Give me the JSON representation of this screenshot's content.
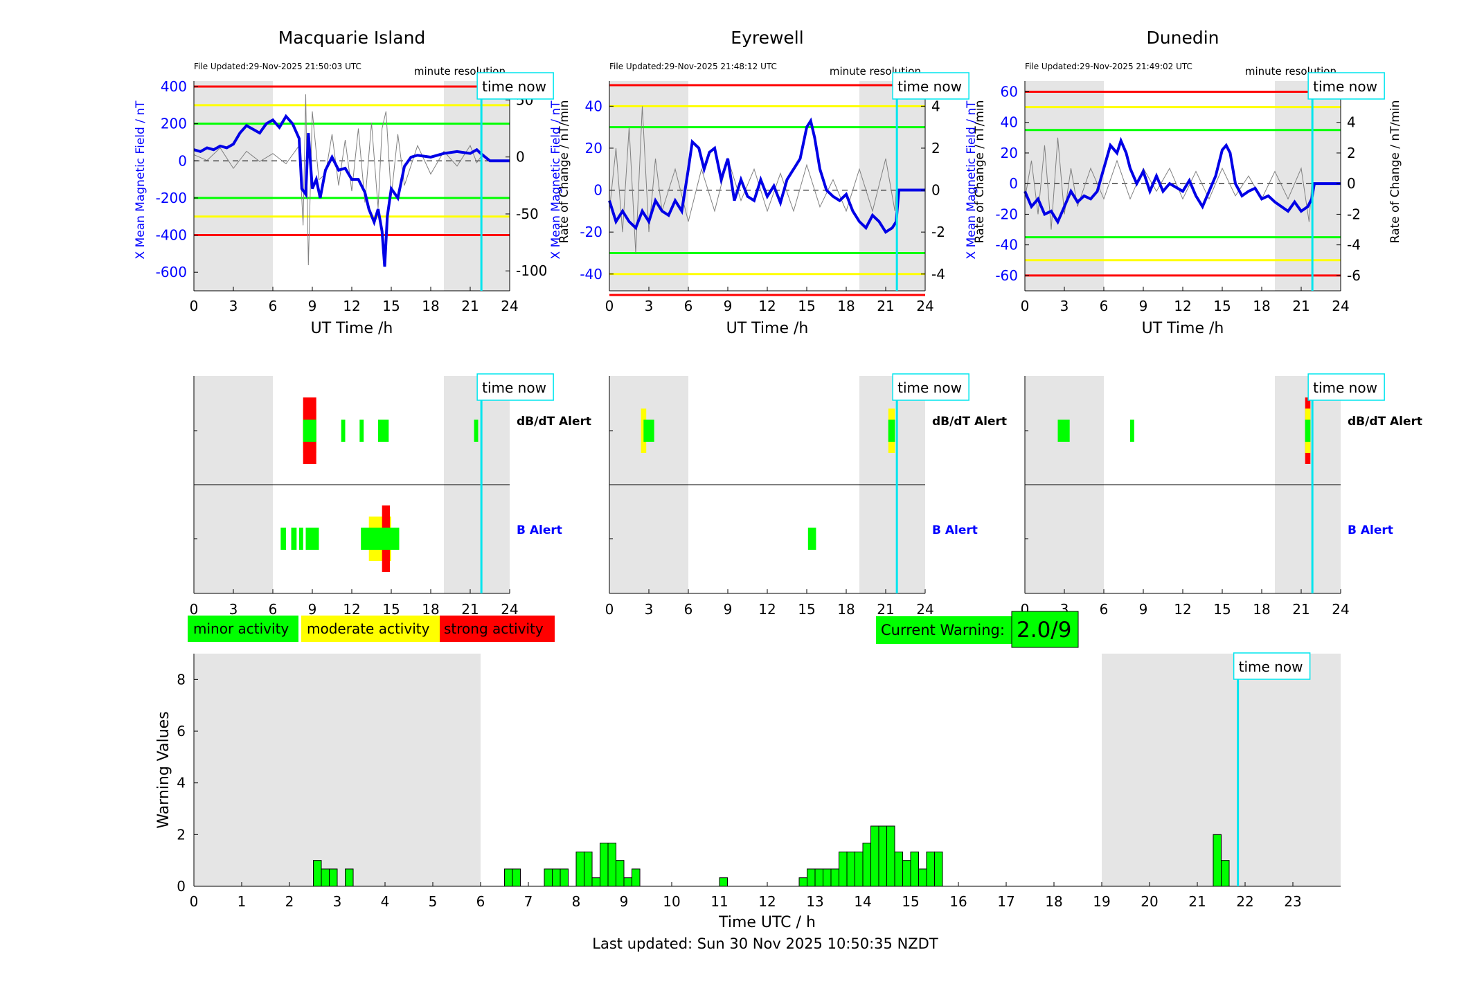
{
  "colors": {
    "shade": "#e5e5e5",
    "field_line": "#0000e6",
    "rate_line": "#808080",
    "red": "#ff0000",
    "yellow": "#ffff00",
    "green": "#00ff00",
    "cyan": "#00e5ee",
    "blue_text": "#0000ff"
  },
  "common": {
    "x_ticks": [
      0,
      3,
      6,
      9,
      12,
      15,
      18,
      21,
      24
    ],
    "xlabel": "UT Time /h",
    "minute_resolution": "minute resolution",
    "time_now_label": "time now",
    "time_now_hour": 21.85,
    "night_shading": [
      [
        0,
        6
      ],
      [
        19,
        24
      ]
    ],
    "dbdt_alert_label": "dB/dT Alert",
    "b_alert_label": "B Alert"
  },
  "stations": [
    {
      "name": "Macquarie Island",
      "file_updated": "File Updated:29-Nov-2025 21:50:03 UTC",
      "ylabel_left": "X Mean Magnetic Field / nT",
      "ylabel_right": "Rate of Change / nT/min",
      "ylim_left": [
        -700,
        430
      ],
      "left_ticks": [
        400,
        200,
        0,
        -200,
        -400,
        -600
      ],
      "ylim_right": [
        -117.5,
        66.7
      ],
      "right_ticks": [
        50,
        0,
        -50,
        -100
      ],
      "thresholds": {
        "red": [
          400,
          -400
        ],
        "yellow": [
          300,
          -300
        ],
        "green": [
          200,
          -200
        ]
      },
      "field_series": [
        [
          0,
          60
        ],
        [
          0.5,
          50
        ],
        [
          1,
          70
        ],
        [
          1.5,
          60
        ],
        [
          2,
          80
        ],
        [
          2.5,
          70
        ],
        [
          3,
          90
        ],
        [
          3.5,
          150
        ],
        [
          4,
          190
        ],
        [
          4.5,
          170
        ],
        [
          5,
          150
        ],
        [
          5.5,
          200
        ],
        [
          6,
          220
        ],
        [
          6.5,
          180
        ],
        [
          7,
          240
        ],
        [
          7.5,
          200
        ],
        [
          8,
          120
        ],
        [
          8.2,
          -150
        ],
        [
          8.5,
          -180
        ],
        [
          8.7,
          150
        ],
        [
          9,
          -150
        ],
        [
          9.3,
          -100
        ],
        [
          9.6,
          -200
        ],
        [
          10,
          -50
        ],
        [
          10.5,
          20
        ],
        [
          11,
          -50
        ],
        [
          11.5,
          -40
        ],
        [
          12,
          -100
        ],
        [
          12.5,
          -100
        ],
        [
          13,
          -170
        ],
        [
          13.3,
          -260
        ],
        [
          13.7,
          -330
        ],
        [
          14,
          -260
        ],
        [
          14.3,
          -380
        ],
        [
          14.5,
          -570
        ],
        [
          14.7,
          -300
        ],
        [
          15,
          -150
        ],
        [
          15.5,
          -200
        ],
        [
          16,
          -30
        ],
        [
          16.5,
          20
        ],
        [
          17,
          30
        ],
        [
          18,
          20
        ],
        [
          19,
          40
        ],
        [
          20,
          50
        ],
        [
          21,
          40
        ],
        [
          21.5,
          60
        ],
        [
          21.8,
          40
        ],
        [
          22.5,
          0
        ],
        [
          24,
          0
        ]
      ],
      "rate_series": [
        [
          0,
          2
        ],
        [
          1,
          -3
        ],
        [
          2,
          8
        ],
        [
          3,
          -10
        ],
        [
          4,
          5
        ],
        [
          5,
          -4
        ],
        [
          6,
          3
        ],
        [
          7,
          -6
        ],
        [
          8,
          10
        ],
        [
          8.3,
          -60
        ],
        [
          8.5,
          55
        ],
        [
          8.7,
          -95
        ],
        [
          9,
          40
        ],
        [
          9.5,
          -20
        ],
        [
          10,
          -15
        ],
        [
          10.5,
          20
        ],
        [
          11,
          -25
        ],
        [
          11.5,
          15
        ],
        [
          12,
          -30
        ],
        [
          12.5,
          25
        ],
        [
          13,
          -40
        ],
        [
          13.5,
          30
        ],
        [
          14,
          -45
        ],
        [
          14.3,
          25
        ],
        [
          14.6,
          40
        ],
        [
          15,
          -35
        ],
        [
          15.5,
          20
        ],
        [
          16,
          -25
        ],
        [
          17,
          10
        ],
        [
          18,
          -15
        ],
        [
          19,
          5
        ],
        [
          20,
          -8
        ],
        [
          21,
          10
        ],
        [
          21.5,
          -5
        ],
        [
          21.8,
          0
        ]
      ],
      "dbdt_blocks": [
        [
          8.3,
          9.3,
          "green"
        ],
        [
          8.3,
          9.3,
          "yellow"
        ],
        [
          8.3,
          9.3,
          "red"
        ],
        [
          11.2,
          11.5,
          "green"
        ],
        [
          12.6,
          12.9,
          "green"
        ],
        [
          14,
          14.8,
          "green"
        ],
        [
          21.3,
          21.6,
          "green"
        ]
      ],
      "b_blocks": [
        [
          6.6,
          7.0,
          "green"
        ],
        [
          7.4,
          7.8,
          "green"
        ],
        [
          8,
          8.3,
          "green"
        ],
        [
          8.5,
          9.5,
          "green"
        ],
        [
          12.7,
          15.6,
          "green"
        ],
        [
          13.3,
          15.0,
          "yellow"
        ],
        [
          14.3,
          14.9,
          "red"
        ]
      ]
    },
    {
      "name": "Eyrewell",
      "file_updated": "File Updated:29-Nov-2025 21:48:12 UTC",
      "ylabel_left": "X Mean Magnetic Field / nT",
      "ylabel_right": "Rate of Change / nT/min",
      "ylim_left": [
        -48,
        52
      ],
      "left_ticks": [
        40,
        20,
        0,
        -20,
        -40
      ],
      "ylim_right": [
        -4.8,
        5.2
      ],
      "right_ticks": [
        4,
        2,
        0,
        -2,
        -4
      ],
      "thresholds": {
        "red": [
          50,
          -50
        ],
        "yellow": [
          40,
          -40
        ],
        "green": [
          30,
          -30
        ]
      },
      "field_series": [
        [
          0,
          -5
        ],
        [
          0.5,
          -15
        ],
        [
          1,
          -10
        ],
        [
          1.5,
          -15
        ],
        [
          2,
          -18
        ],
        [
          2.5,
          -10
        ],
        [
          3,
          -15
        ],
        [
          3.5,
          -5
        ],
        [
          4,
          -10
        ],
        [
          4.5,
          -12
        ],
        [
          5,
          -5
        ],
        [
          5.5,
          -10
        ],
        [
          6,
          10
        ],
        [
          6.3,
          23
        ],
        [
          6.8,
          20
        ],
        [
          7.2,
          10
        ],
        [
          7.6,
          18
        ],
        [
          8,
          20
        ],
        [
          8.5,
          5
        ],
        [
          9,
          15
        ],
        [
          9.5,
          -5
        ],
        [
          10,
          5
        ],
        [
          10.5,
          -3
        ],
        [
          11,
          -5
        ],
        [
          11.5,
          5
        ],
        [
          12,
          -3
        ],
        [
          12.5,
          2
        ],
        [
          13,
          -6
        ],
        [
          13.5,
          5
        ],
        [
          14,
          10
        ],
        [
          14.5,
          15
        ],
        [
          15,
          30
        ],
        [
          15.3,
          33
        ],
        [
          15.6,
          25
        ],
        [
          16,
          10
        ],
        [
          16.5,
          0
        ],
        [
          17,
          -3
        ],
        [
          17.5,
          -5
        ],
        [
          18,
          -2
        ],
        [
          18.5,
          -10
        ],
        [
          19,
          -15
        ],
        [
          19.5,
          -18
        ],
        [
          20,
          -12
        ],
        [
          20.5,
          -15
        ],
        [
          21,
          -20
        ],
        [
          21.5,
          -18
        ],
        [
          21.8,
          -15
        ],
        [
          22,
          0
        ],
        [
          24,
          0
        ]
      ],
      "rate_series": [
        [
          0,
          -1
        ],
        [
          0.5,
          2
        ],
        [
          1,
          -2
        ],
        [
          1.5,
          3
        ],
        [
          2,
          -3
        ],
        [
          2.5,
          4
        ],
        [
          3,
          -2
        ],
        [
          3.5,
          1.5
        ],
        [
          4,
          -1
        ],
        [
          5,
          1
        ],
        [
          6,
          -1.5
        ],
        [
          7,
          1
        ],
        [
          8,
          -1
        ],
        [
          9,
          1.5
        ],
        [
          10,
          -0.5
        ],
        [
          11,
          1
        ],
        [
          12,
          -1
        ],
        [
          13,
          0.8
        ],
        [
          14,
          -1
        ],
        [
          15,
          1.2
        ],
        [
          16,
          -0.8
        ],
        [
          17,
          0.5
        ],
        [
          18,
          -1
        ],
        [
          19,
          1
        ],
        [
          20,
          -1
        ],
        [
          21,
          1.5
        ],
        [
          21.7,
          -1
        ],
        [
          21.8,
          0
        ]
      ],
      "dbdt_blocks": [
        [
          2.4,
          2.8,
          "yellow"
        ],
        [
          2.6,
          3.4,
          "green"
        ],
        [
          21.2,
          21.7,
          "yellow"
        ],
        [
          21.2,
          21.7,
          "green"
        ]
      ],
      "b_blocks": [
        [
          15.1,
          15.7,
          "green"
        ]
      ]
    },
    {
      "name": "Dunedin",
      "file_updated": "File Updated:29-Nov-2025 21:49:02 UTC",
      "ylabel_left": "X Mean Magnetic Field / nT",
      "ylabel_right": "Rate of Change / nT/min",
      "ylim_left": [
        -70,
        67
      ],
      "left_ticks": [
        60,
        40,
        20,
        0,
        -20,
        -40,
        -60
      ],
      "ylim_right": [
        -7,
        6.7
      ],
      "right_ticks": [
        6,
        4,
        2,
        0,
        -2,
        -4,
        -6
      ],
      "thresholds": {
        "red": [
          60,
          -60
        ],
        "yellow": [
          50,
          -50
        ],
        "green": [
          35,
          -35
        ]
      },
      "field_series": [
        [
          0,
          -5
        ],
        [
          0.5,
          -15
        ],
        [
          1,
          -10
        ],
        [
          1.5,
          -20
        ],
        [
          2,
          -18
        ],
        [
          2.5,
          -25
        ],
        [
          3,
          -15
        ],
        [
          3.5,
          -5
        ],
        [
          4,
          -12
        ],
        [
          4.5,
          -8
        ],
        [
          5,
          -10
        ],
        [
          5.5,
          -5
        ],
        [
          6,
          10
        ],
        [
          6.5,
          25
        ],
        [
          7,
          20
        ],
        [
          7.3,
          28
        ],
        [
          7.7,
          20
        ],
        [
          8,
          10
        ],
        [
          8.5,
          0
        ],
        [
          9,
          8
        ],
        [
          9.5,
          -5
        ],
        [
          10,
          5
        ],
        [
          10.5,
          -5
        ],
        [
          11,
          0
        ],
        [
          12,
          -5
        ],
        [
          12.5,
          2
        ],
        [
          13,
          -8
        ],
        [
          13.5,
          -15
        ],
        [
          14,
          -5
        ],
        [
          14.5,
          5
        ],
        [
          15,
          22
        ],
        [
          15.3,
          25
        ],
        [
          15.6,
          20
        ],
        [
          16,
          0
        ],
        [
          16.5,
          -8
        ],
        [
          17,
          -5
        ],
        [
          17.5,
          -3
        ],
        [
          18,
          -10
        ],
        [
          18.5,
          -8
        ],
        [
          19,
          -12
        ],
        [
          19.5,
          -15
        ],
        [
          20,
          -18
        ],
        [
          20.5,
          -12
        ],
        [
          21,
          -18
        ],
        [
          21.5,
          -15
        ],
        [
          21.8,
          -10
        ],
        [
          22,
          0
        ],
        [
          24,
          0
        ]
      ],
      "rate_series": [
        [
          0,
          -1
        ],
        [
          0.5,
          1.5
        ],
        [
          1,
          -2
        ],
        [
          1.5,
          2.5
        ],
        [
          2,
          -3
        ],
        [
          2.5,
          3
        ],
        [
          3,
          -2
        ],
        [
          3.5,
          1
        ],
        [
          4,
          -1.5
        ],
        [
          5,
          1
        ],
        [
          6,
          -1
        ],
        [
          7,
          1.5
        ],
        [
          8,
          -1
        ],
        [
          9,
          1
        ],
        [
          10,
          -0.5
        ],
        [
          11,
          1
        ],
        [
          12,
          -1
        ],
        [
          13,
          0.8
        ],
        [
          14,
          -1
        ],
        [
          15,
          1
        ],
        [
          16,
          -0.8
        ],
        [
          17,
          0.5
        ],
        [
          18,
          -1
        ],
        [
          19,
          0.8
        ],
        [
          20,
          -1
        ],
        [
          21,
          1
        ],
        [
          21.6,
          -2.5
        ],
        [
          21.8,
          0
        ]
      ],
      "dbdt_blocks": [
        [
          2.5,
          3.4,
          "green"
        ],
        [
          8,
          8.3,
          "green"
        ],
        [
          21.3,
          21.7,
          "red"
        ],
        [
          21.3,
          21.7,
          "yellow"
        ],
        [
          21.3,
          21.7,
          "green"
        ]
      ],
      "b_blocks": []
    }
  ],
  "legend": {
    "minor": "minor activity",
    "moderate": "moderate activity",
    "strong": "strong activity"
  },
  "current_warning": {
    "label": "Current Warning:",
    "value": "2.0/9"
  },
  "chart_data": {
    "type": "bar",
    "xlabel": "Time UTC / h",
    "ylabel": "Warning Values",
    "xlim": [
      0,
      24
    ],
    "ylim": [
      0,
      9
    ],
    "x_ticks": [
      0,
      1,
      2,
      3,
      4,
      5,
      6,
      7,
      8,
      9,
      10,
      11,
      12,
      13,
      14,
      15,
      16,
      17,
      18,
      19,
      20,
      21,
      22,
      23
    ],
    "y_ticks": [
      0,
      2,
      4,
      6,
      8
    ],
    "bar_width_h": 0.1667,
    "x": [
      2.5,
      2.667,
      2.833,
      3.167,
      6.5,
      6.667,
      7.333,
      7.5,
      7.667,
      8.0,
      8.167,
      8.333,
      8.5,
      8.667,
      8.833,
      9.0,
      9.167,
      11.0,
      12.667,
      12.833,
      13.0,
      13.167,
      13.333,
      13.5,
      13.667,
      13.833,
      14.0,
      14.167,
      14.333,
      14.5,
      14.667,
      14.833,
      15.0,
      15.167,
      15.333,
      15.5,
      21.333,
      21.5
    ],
    "values": [
      1,
      0.67,
      0.67,
      0.67,
      0.67,
      0.67,
      0.67,
      0.67,
      0.67,
      1.33,
      1.33,
      0.33,
      1.67,
      1.67,
      1,
      0.33,
      0.67,
      0.33,
      0.33,
      0.67,
      0.67,
      0.67,
      0.67,
      1.33,
      1.33,
      1.33,
      1.67,
      2.33,
      2.33,
      2.33,
      1.33,
      1,
      1.33,
      0.67,
      1.33,
      1.33,
      2,
      1
    ],
    "bar_color": "#00ff00",
    "time_now_hour": 21.85,
    "night_shading": [
      [
        0,
        6
      ],
      [
        19,
        24
      ]
    ]
  },
  "footer": {
    "last_updated": "Last updated: Sun 30 Nov 2025 10:50:35 NZDT"
  }
}
